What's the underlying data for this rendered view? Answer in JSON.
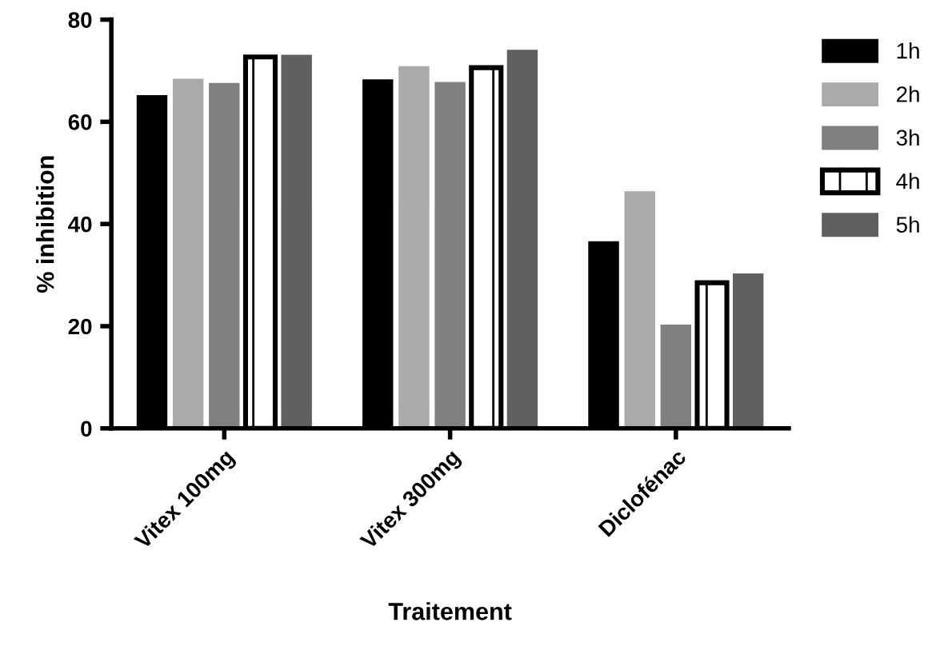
{
  "chart_data": {
    "type": "bar",
    "xlabel": "Traitement",
    "ylabel": "% inhibition",
    "categories": [
      "Vitex 100mg",
      "Vitex 300mg",
      "Diclofénac"
    ],
    "series": [
      {
        "name": "1h",
        "color": "#000000",
        "values": [
          65.1,
          68.2,
          36.5
        ]
      },
      {
        "name": "2h",
        "color": "#aaaaaa",
        "values": [
          68.3,
          70.8,
          46.3
        ]
      },
      {
        "name": "3h",
        "color": "#808080",
        "values": [
          67.5,
          67.7,
          20.2
        ]
      },
      {
        "name": "4h",
        "color": "#000000",
        "values": [
          72.7,
          70.6,
          28.5
        ]
      },
      {
        "name": "5h",
        "color": "#606060",
        "values": [
          73.0,
          74.0,
          30.2
        ]
      }
    ],
    "ylim": [
      0,
      80
    ],
    "yticks": [
      0,
      20,
      40,
      60,
      80
    ],
    "grid": false,
    "legend": "top right"
  }
}
